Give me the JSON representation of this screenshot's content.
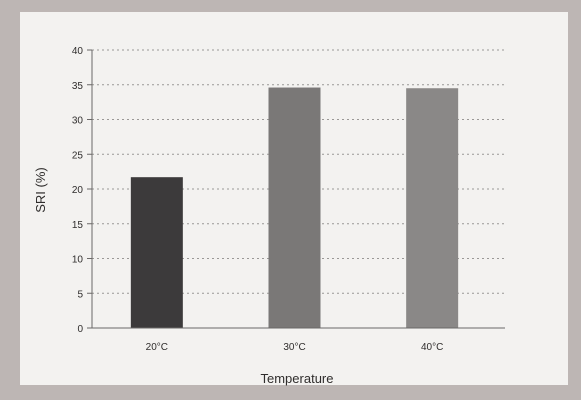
{
  "chart_data": {
    "type": "bar",
    "title": "",
    "categories": [
      "20°C",
      "30°C",
      "40°C"
    ],
    "values": [
      21.7,
      34.6,
      34.5
    ],
    "xlabel": "Temperature",
    "ylabel": "SRI (%)",
    "ylim": [
      0,
      40
    ],
    "yticks": [
      0,
      5,
      10,
      15,
      20,
      25,
      30,
      35,
      40
    ],
    "grid": true,
    "legend": "none"
  },
  "colors": {
    "background": "#bdb6b4",
    "plot_area": "#f3f2f0",
    "bars": [
      "#3c3a3b",
      "#7a7877",
      "#8a8887"
    ],
    "gridline": "#9a9896",
    "axis": "#6a6867",
    "text": "#2f2d2c"
  }
}
